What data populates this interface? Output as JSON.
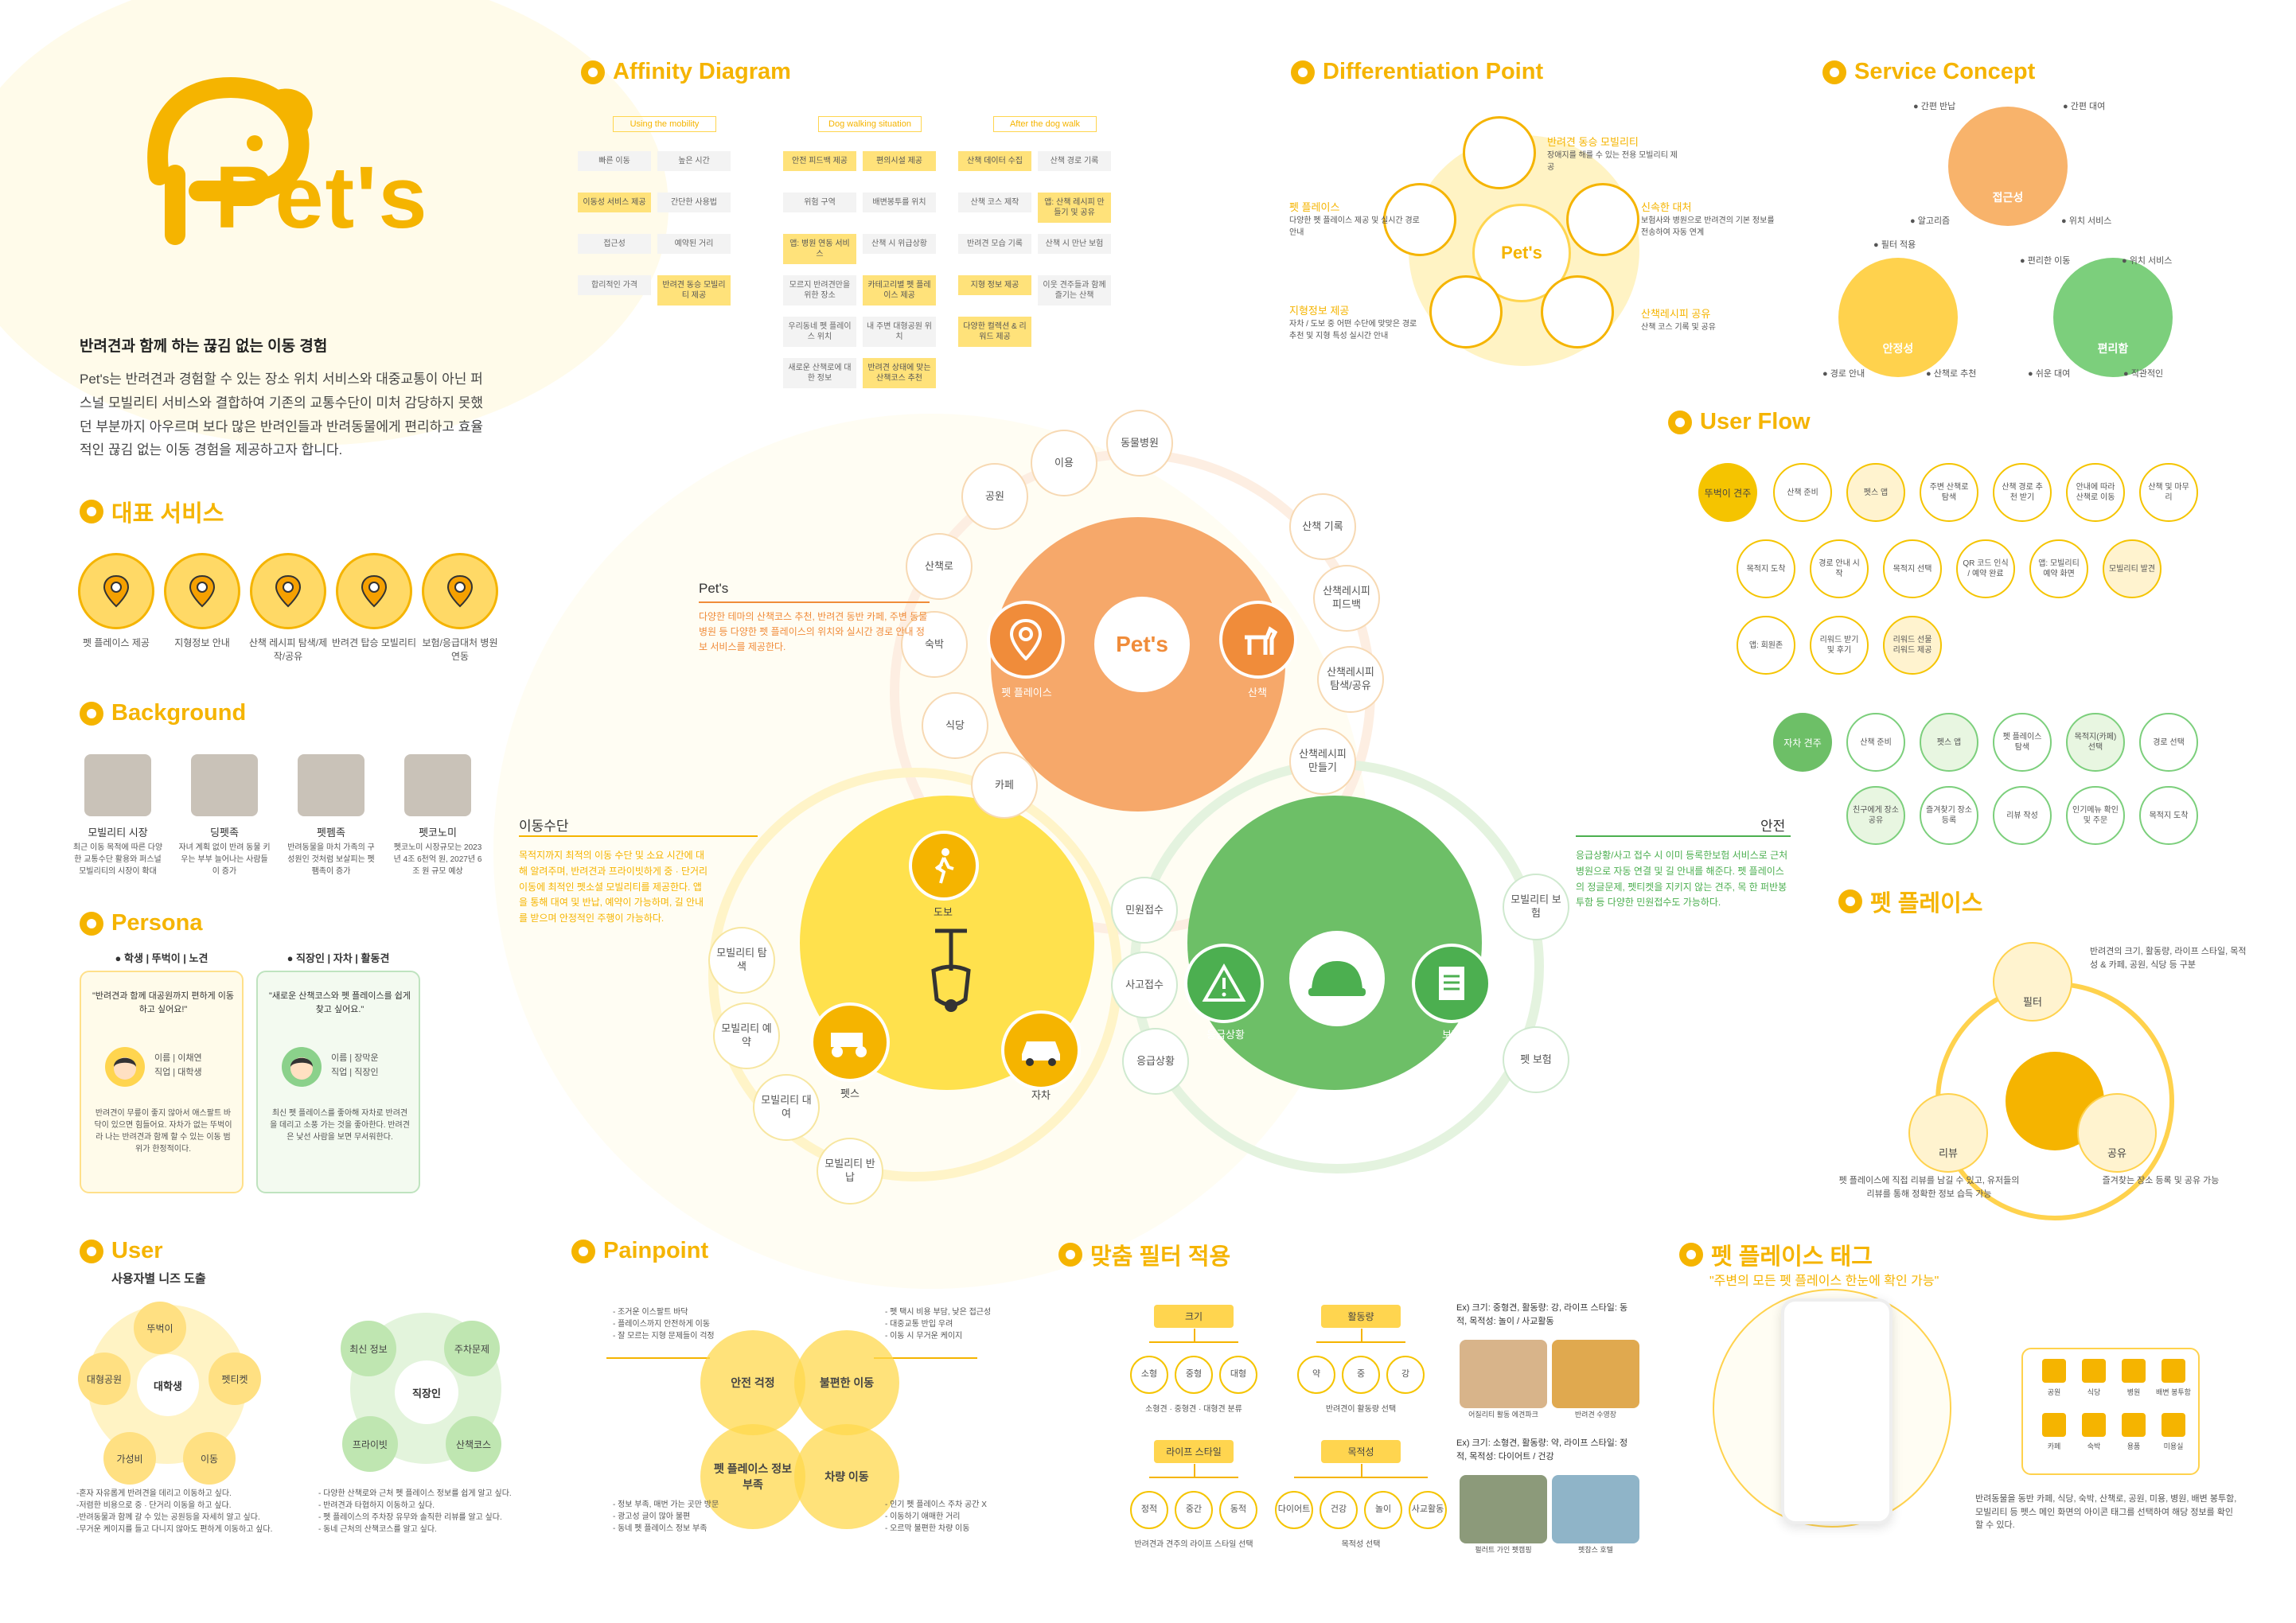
{
  "logo": {
    "text": "Pet's"
  },
  "intro": {
    "headline": "반려견과 함께 하는 끊김 없는 이동 경험",
    "body": "Pet's는 반려견과 경험할 수 있는 장소 위치 서비스와 대중교통이 아닌 퍼스널 모빌리티 서비스와 결합하여 기존의 교통수단이 미처 감당하지 못했던 부분까지 아우르며 보다 많은 반려인들과 반려동물에게 편리하고 효율적인 끊김 없는 이동 경험을 제공하고자 합니다."
  },
  "rep_service": {
    "title": "대표 서비스",
    "items": [
      {
        "label": "펫 플레이스 제공",
        "icon": "map-pin-icon"
      },
      {
        "label": "지형정보 안내",
        "icon": "road-icon"
      },
      {
        "label": "산책 레시피 탐색/제작/공유",
        "icon": "phone-pin-icon"
      },
      {
        "label": "반려견 탑승 모빌리티",
        "icon": "scooter-icon"
      },
      {
        "label": "보험/응급대처 병원 연동",
        "icon": "shield-paw-icon"
      }
    ]
  },
  "background": {
    "title": "Background",
    "items": [
      {
        "title": "모빌리티 시장",
        "desc": "최근 이동 목적에 따른 다양한 교통수단 활용와 퍼스널 모빌리티의 시장이 확대"
      },
      {
        "title": "딩펫족",
        "desc": "자녀 계획 없이 반려 동물 키우는 부부 늘어나는 사람들이 증가"
      },
      {
        "title": "펫펨족",
        "desc": "반려동물을 마치 가족의 구성원인 것처럼 보살피는 펫팸족이 증가"
      },
      {
        "title": "펫코노미",
        "desc": "펫코노미 시장규모는 2023년 4조 6천억 원, 2027년 6조 원 규모 예상"
      }
    ]
  },
  "persona": {
    "title": "Persona",
    "cards": [
      {
        "tag": "학생 | 뚜벅이 | 노견",
        "quote": "\"반려견과 함께 대공원까지 편하게 이동하고 싶어요!\"",
        "name": "이름 | 이채연",
        "job": "직업 | 대학생",
        "desc": "반려견이 무릎이 좋지 않아서 애스팔트 바닥이 있으면 힘들어요. 자차가 없는 뚜벅이라 나는 반려견과 함께 할 수 있는 이동 범위가 한정적이다."
      },
      {
        "tag": "직장인 | 자차 | 활동견",
        "quote": "\"새로운 산책코스와 펫 플레이스를 쉽게 찾고 싶어요.\"",
        "name": "이름 | 장막운",
        "job": "직업 | 직장인",
        "desc": "최신 펫 플레이스를 좋아해 자차로 반려견을 데리고 소풍 가는 것을 좋아한다. 반려견은 낯선 사람을 보면 무서워한다."
      }
    ]
  },
  "user": {
    "title": "User",
    "subtitle": "사용자별 니즈 도출",
    "left": {
      "center": "대학생",
      "nodes": [
        "뚜벅이",
        "펫티켓",
        "이동",
        "가성비",
        "대형공원"
      ],
      "notes": [
        "-혼자 자유롭게 반려견을 데리고 이동하고 싶다.",
        "-저렴한 비용으로 중 · 단거리 이동을 하고 싶다.",
        "-반려동물과 함께 갈 수 있는 공원등을 자세히 알고 싶다.",
        "-무거운 케이지를 들고 다니지 않아도 편하게 이동하고 싶다."
      ]
    },
    "right": {
      "center": "직장인",
      "nodes": [
        "최신 정보",
        "주차문제",
        "산책코스",
        "프라이빗"
      ],
      "notes": [
        "- 다양한 산책로와 근처 펫 플레이스 정보를 쉽게 알고 싶다.",
        "- 반려견과 타협하지 이동하고 싶다.",
        "- 펫 플레이스의 주차장 유무와 솔직한 리뷰를 알고 싶다.",
        "- 동네 근처의 산책코스를 알고 싶다."
      ]
    }
  },
  "affinity": {
    "title": "Affinity Diagram",
    "columns": [
      {
        "head": "Using the mobility",
        "notes": [
          "빠른 이동",
          "높은 시간",
          "이동성 서비스 제공",
          "간단한 사용법",
          "접근성",
          "예약된 거리",
          "합리적인 가격",
          "반려견 동승 모빌리티 제공"
        ]
      },
      {
        "head": "Dog walking situation",
        "notes": [
          "안전 피드백 제공",
          "편의시설 제공",
          "위험 구역",
          "배변봉투를 위치",
          "앱: 병원 연동 서비스",
          "산책 시 위급상황",
          "모르지 반려견만을 위한 장소",
          "카테고리별 펫 플레이스 제공",
          "우리동네 펫 플레이스 위치",
          "내 주변 대형공원 위치",
          "새로운 산책로에 대한 정보",
          "반려견 상태에 맞는 산책코스 추천"
        ]
      },
      {
        "head": "After the dog walk",
        "notes": [
          "산책 데이터 수집",
          "산책 경로 기록",
          "산책 코스 제작",
          "앱: 산책 레시피 만들기 및 공유",
          "반려견 모습 기록",
          "산책 시 만난 보험",
          "지형 정보 제공",
          "이웃 견주들과 함께 즐기는 산책",
          "다양한 컬렉션 & 리워드 제공"
        ]
      }
    ]
  },
  "center": {
    "core": "Pet's",
    "pets_heading": "Pet's",
    "pets_desc": "다양한 테마의 산책코스 추천, 반려견 동반 카페, 주변 동물 병원 등 다양한 펫 플레이스의 위치와 실시간 경로 안내 정보 서비스를 제공한다.",
    "place_label": "펫 플레이스",
    "walk_label": "산책",
    "orange_nodes": [
      "이용",
      "동물병원",
      "공원",
      "산책 기록",
      "산책로",
      "산책레시피 피드백",
      "숙박",
      "산책레시피 탐색/공유",
      "식당",
      "산책레시피 만들기",
      "카페"
    ],
    "move_heading": "이동수단",
    "move_desc": "목적지까지 최적의 이동 수단 및 소요 시간에 대해 알려주며, 반려견과 프라이빗하게 중 · 단거리 이동에 최적인 펫소셜 모빌리티를 제공한다. 앱을 통해 대여 및 반납, 예약이 가능하며, 길 안내를 받으며 안정적인 주행이 가능하다.",
    "walk_icon_label": "도보",
    "scooter_label": "펫스",
    "car_label": "자차",
    "yellow_nodes": [
      "모빌리티 탐색",
      "모빌리티 예약",
      "모빌리티 대여",
      "모빌리티 반납"
    ],
    "safe_heading": "안전",
    "safe_desc": "응급상황/사고 접수 시 이미 등록한보험 서비스로 근처 병원으로 자동 연결 및 길 안내를 해준다. 펫 플레이스의 정글문제, 펫티켓을 지키지 않는 견주, 목 한 퍼반봉투함 등 다양한 민원접수도 가능하다.",
    "emergency_label": "응급상황",
    "insurance_label": "보험",
    "green_nodes": [
      "민원접수",
      "사고접수",
      "응급상황",
      "모빌리티 보험",
      "펫 보험"
    ]
  },
  "painpoint": {
    "title": "Painpoint",
    "circles": [
      "안전 걱정",
      "불편한 이동",
      "펫 플레이스 정보 부족",
      "차량 이동"
    ],
    "notes_tl": [
      "- 조거운 이스팔트 바닥",
      "- 플레이스까지 안전하게 이동",
      "- 잘 모르는 지형 문제들이 걱정"
    ],
    "notes_tr": [
      "- 펫 택시 비용 부담, 낮은 접근성",
      "- 대중교통 반입 우려",
      "- 이동 시 무거운 케이지"
    ],
    "notes_bl": [
      "- 정보 부족, 매번 가는 곳만 방문",
      "- 광고성 글이 많아 불편",
      "- 동네 펫 플레이스 정보 부족"
    ],
    "notes_br": [
      "- 인기 펫 플레이스 주차 공간 X",
      "- 이동하기 애매한 거리",
      "- 오르막 불편한 차량 이동"
    ]
  },
  "filter": {
    "title": "맞춤 필터 적용",
    "groups": [
      {
        "head": "크기",
        "opts": [
          "소형",
          "중형",
          "대형"
        ],
        "caption": "소형견 · 중형견 · 대형견 분류"
      },
      {
        "head": "활동량",
        "opts": [
          "약",
          "중",
          "강"
        ],
        "caption": "반려견이 활동량 선택"
      },
      {
        "head": "라이프 스타일",
        "opts": [
          "정적",
          "중간",
          "동적"
        ],
        "caption": "반려견과 견주의 라이프 스타일 선택"
      },
      {
        "head": "목적성",
        "opts": [
          "다이어트",
          "건강",
          "놀이",
          "사교활동"
        ],
        "caption": "목적성 선택"
      }
    ],
    "ex1": "Ex) 크기: 중형견, 활동량: 강, 라이프 스타일: 동적, 목적성: 놀이 / 사교활동",
    "ex1_caps": [
      "어질리티 활동 에견파크",
      "반려견 수영장"
    ],
    "ex2": "Ex) 크기: 소형견, 활동량: 약, 라이프 스타일: 정적, 목적성: 다이어트 / 건강",
    "ex2_caps": [
      "펄러트 가인 펫캠핑",
      "펫참스 호텔"
    ]
  },
  "diff": {
    "title": "Differentiation Point",
    "items": [
      {
        "title": "반려견 동승 모빌리티",
        "desc": "장애지를 해를 수 있는 전용 모빌리티 제공"
      },
      {
        "title": "펫 플레이스",
        "desc": "다양한 펫 플레이스 제공 및 실시간 경로 안내"
      },
      {
        "title": "신속한 대처",
        "desc": "보험사와 병원으로 반려견의 기본 정보를 전송하여 자동 연계"
      },
      {
        "title": "지형정보 제공",
        "desc": "자차 / 도보 중 어떤 수단에 맞맞은 경로 추천 및 지형 특성 실시간 안내"
      },
      {
        "title": "산책레시피 공유",
        "desc": "산책 코스 기록 및 공유"
      }
    ],
    "core": "Pet's"
  },
  "concept": {
    "title": "Service Concept",
    "circles": [
      {
        "label": "접근성",
        "tags": [
          "간편 반납",
          "간편 대여",
          "알고리즘",
          "위치 서비스"
        ]
      },
      {
        "label": "안정성",
        "tags": [
          "필터 적용",
          "경로 안내",
          "산책로 추천"
        ]
      },
      {
        "label": "편리함",
        "tags": [
          "편리한 이동",
          "위치 서비스",
          "쉬운 대여",
          "직관적인"
        ]
      }
    ]
  },
  "userflow": {
    "title": "User Flow",
    "start1": "뚜벅이 견주",
    "row1": [
      "산책 준비",
      "펫스 앱",
      "주변 산책로 탐색",
      "산책 경로 추천 받기",
      "안내에 따라 산책로 이동",
      "산책 및 마무리"
    ],
    "row2": [
      "목적지 도착",
      "경로 안내 시작",
      "목적지 선택",
      "QR 코드 인식 / 예약 완료",
      "앱: 모빌리티 예약 화면",
      "모빌리티 발견"
    ],
    "row3": [
      "앱: 회원존",
      "리워드 받기 및 후기",
      "리워드 선물 리워드 제공"
    ],
    "start2": "자차 견주",
    "row4": [
      "산책 준비",
      "펫스 앱",
      "펫 플레이스 탐색",
      "목적지(카페) 선택",
      "경로 선택"
    ],
    "row5": [
      "친구에게 장소 공유",
      "즐겨찾기 장소 등록",
      "리뷰 작성",
      "인기메뉴 확인 및 주문",
      "목적지 도착"
    ]
  },
  "petplace": {
    "title": "펫 플레이스",
    "filter_label": "필터",
    "filter_desc": "반려견의 크기, 활동량, 라이프 스타일, 목적성 & 카페, 공원, 식당 등 구분",
    "review_label": "리뷰",
    "review_desc": "펫 플레이스에 직접 리뷰를 남길 수 있고, 유저들의 리뷰를 통해 정확한 정보 습득 가능",
    "share_label": "공유",
    "share_desc": "즐겨찾는 장소 등록 및 공유 가능"
  },
  "tag": {
    "title": "펫 플레이스 태그",
    "subtitle": "\"주변의 모든 펫 플레이스 한눈에 확인 가능\"",
    "tags": [
      "공원",
      "식당",
      "병원",
      "배변 봉투함",
      "카페",
      "숙박",
      "용품",
      "미용실"
    ],
    "desc": "반려동물을 동반 카페, 식당, 숙박, 산책로, 공원, 미용, 병원, 배변 봉투함, 모빌리티 등 펫스 메인 화면의 아이콘 태그를 선택하여 해당 정보를 확인할 수 있다."
  },
  "colors": {
    "primary": "#f5b400",
    "orange": "#f08c3a",
    "green": "#4caf50",
    "yellow": "#ffe04d"
  }
}
